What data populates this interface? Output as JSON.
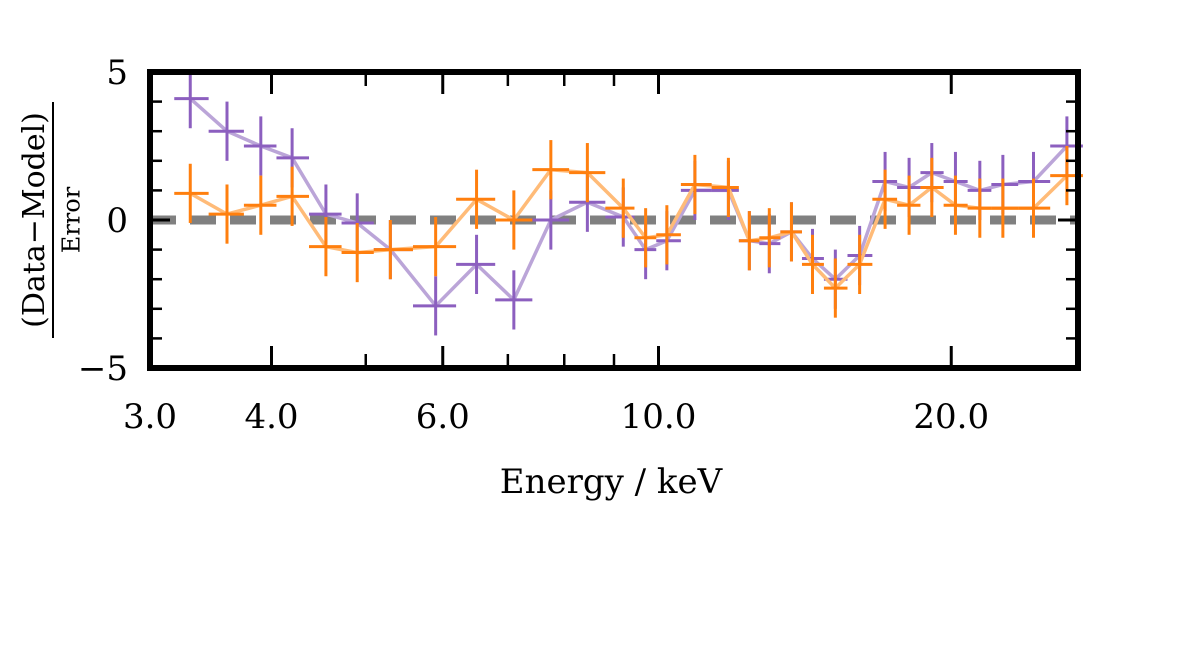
{
  "chart_data": {
    "type": "scatter",
    "xscale": "log",
    "xlim": [
      3.0,
      27.0
    ],
    "ylim": [
      -5,
      5
    ],
    "xlabel": "Energy / keV",
    "ylabel_numerator": "(Data−Model)",
    "ylabel_denominator": "Error",
    "xticks": [
      {
        "value": 3.0,
        "label": "3.0"
      },
      {
        "value": 4.0,
        "label": "4.0"
      },
      {
        "value": 6.0,
        "label": "6.0"
      },
      {
        "value": 10.0,
        "label": "10.0"
      },
      {
        "value": 20.0,
        "label": "20.0"
      }
    ],
    "yticks": [
      {
        "value": 5,
        "label": "5"
      },
      {
        "value": 0,
        "label": "0"
      },
      {
        "value": -5,
        "label": "−5"
      }
    ],
    "reference_line": {
      "y": 0,
      "style": "dashed",
      "color": "#808080"
    },
    "series": [
      {
        "name": "purple",
        "marker_color": "#8c5fbf",
        "line_color": "#bba5d8",
        "x": [
          3.3,
          3.6,
          3.9,
          4.2,
          4.55,
          4.9,
          5.3,
          5.9,
          6.5,
          7.1,
          7.75,
          8.45,
          9.2,
          9.7,
          10.2,
          10.9,
          11.8,
          12.4,
          13.0,
          13.7,
          14.4,
          15.2,
          16.1,
          17.1,
          18.1,
          19.1,
          20.2,
          21.4,
          22.6,
          24.3,
          26.3
        ],
        "y": [
          4.1,
          3.0,
          2.5,
          2.1,
          0.2,
          -0.1,
          -1.0,
          -2.9,
          -1.5,
          -2.7,
          0.0,
          0.6,
          0.1,
          -1.0,
          -0.7,
          1.0,
          1.0,
          -0.7,
          -0.8,
          -0.4,
          -1.3,
          -2.0,
          -1.2,
          1.3,
          1.1,
          1.6,
          1.3,
          1.0,
          1.2,
          1.3,
          2.5
        ],
        "yerr": [
          1.0,
          1.0,
          1.0,
          1.0,
          1.0,
          1.0,
          1.0,
          1.0,
          1.0,
          1.0,
          1.0,
          1.0,
          1.0,
          1.0,
          1.0,
          1.0,
          1.0,
          1.0,
          1.0,
          1.0,
          1.0,
          1.0,
          1.0,
          1.0,
          1.0,
          1.0,
          1.0,
          1.0,
          1.0,
          1.0,
          1.0
        ]
      },
      {
        "name": "orange",
        "marker_color": "#ff7f0e",
        "line_color": "#ffbb78",
        "x": [
          3.3,
          3.6,
          3.9,
          4.2,
          4.55,
          4.9,
          5.3,
          5.9,
          6.5,
          7.1,
          7.75,
          8.45,
          9.2,
          9.7,
          10.2,
          10.9,
          11.8,
          12.4,
          13.0,
          13.7,
          14.4,
          15.2,
          16.1,
          17.1,
          18.1,
          19.1,
          20.2,
          21.4,
          22.6,
          24.3,
          26.3
        ],
        "y": [
          0.9,
          0.2,
          0.5,
          0.8,
          -0.9,
          -1.1,
          -1.0,
          -0.9,
          0.7,
          0.0,
          1.7,
          1.6,
          0.4,
          -0.6,
          -0.5,
          1.2,
          1.1,
          -0.7,
          -0.6,
          -0.4,
          -1.5,
          -2.3,
          -1.5,
          0.7,
          0.5,
          1.1,
          0.5,
          0.4,
          0.4,
          0.4,
          1.5
        ],
        "yerr": [
          1.0,
          1.0,
          1.0,
          1.0,
          1.0,
          1.0,
          1.0,
          1.0,
          1.0,
          1.0,
          1.0,
          1.0,
          1.0,
          1.0,
          1.0,
          1.0,
          1.0,
          1.0,
          1.0,
          1.0,
          1.0,
          1.0,
          1.0,
          1.0,
          1.0,
          1.0,
          1.0,
          1.0,
          1.0,
          1.0,
          1.0
        ]
      }
    ]
  }
}
